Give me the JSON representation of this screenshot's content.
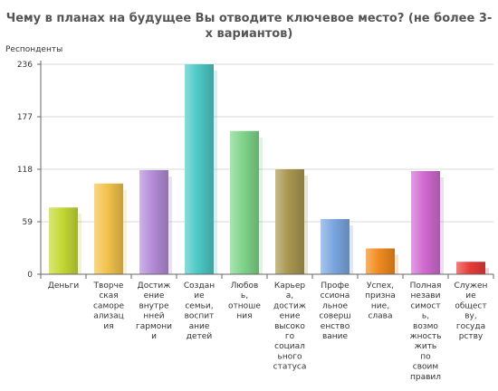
{
  "chart_data": {
    "type": "bar",
    "title_lines": [
      "Чему в планах на будущее Вы отводите ключевое место? (не более 3-",
      "х вариантов)"
    ],
    "ylabel": "Респонденты",
    "xlabel": "",
    "ylim": [
      0,
      236
    ],
    "yticks": [
      "0",
      "59",
      "118",
      "177",
      "236"
    ],
    "grid": true,
    "categories": [
      [
        "Деньги"
      ],
      [
        "Творче",
        "ская",
        "саморе",
        "ализац",
        "ия"
      ],
      [
        "Достиж",
        "ение",
        "внутре",
        "нней",
        "гармони",
        "и"
      ],
      [
        "Создан",
        "ие",
        "семьи,",
        "воспит",
        "ание",
        "детей"
      ],
      [
        "Любов",
        "ь,",
        "отноше",
        "ния"
      ],
      [
        "Карьер",
        "а,",
        "достиж",
        "ение",
        "высоко",
        "го",
        "социал",
        "ьного",
        "статуса"
      ],
      [
        "Профе",
        "ссиона",
        "льное",
        "соверш",
        "енство",
        "вание"
      ],
      [
        "Успех,",
        "призна",
        "ние,",
        "слава"
      ],
      [
        "Полная",
        "незави",
        "симост",
        "ь,",
        "возмо",
        "жность",
        "жить",
        "по",
        "своим",
        "правил"
      ],
      [
        "Служен",
        "ие",
        "общест",
        "ву,",
        "госуда",
        "рству"
      ]
    ],
    "values": [
      75,
      102,
      117,
      236,
      161,
      118,
      62,
      29,
      116,
      14
    ],
    "colors": [
      "#c4d834",
      "#f2c24a",
      "#b38bd6",
      "#4cc8c4",
      "#7ed488",
      "#a89650",
      "#7aa6e0",
      "#f08a1e",
      "#d06ad0",
      "#e83a3a"
    ]
  }
}
